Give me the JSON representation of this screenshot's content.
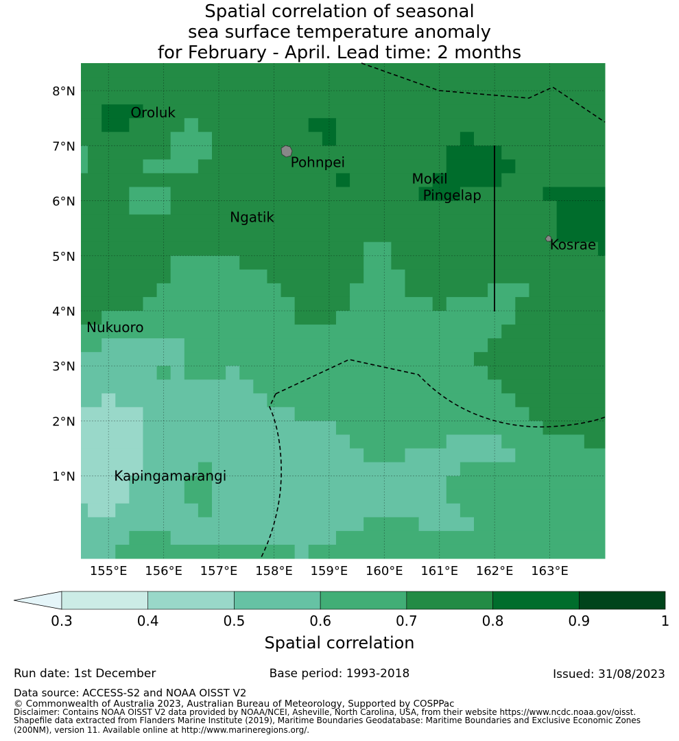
{
  "title": {
    "line1": "Spatial correlation of seasonal",
    "line2": "sea surface temperature anomaly",
    "line3": "for February - April. Lead time: 2 months"
  },
  "map": {
    "lat_labels": [
      "8°N",
      "7°N",
      "6°N",
      "5°N",
      "4°N",
      "3°N",
      "2°N",
      "1°N"
    ],
    "lat_values": [
      8,
      7,
      6,
      5,
      4,
      3,
      2,
      1
    ],
    "lon_labels": [
      "155°E",
      "156°E",
      "157°E",
      "158°E",
      "159°E",
      "160°E",
      "161°E",
      "162°E",
      "163°E"
    ],
    "lon_values": [
      155,
      156,
      157,
      158,
      159,
      160,
      161,
      162,
      163
    ],
    "extent": {
      "lon_min": 154.5,
      "lon_max": 164.0,
      "lat_min": -0.5,
      "lat_max": 8.5
    },
    "grid_resolution_deg": 0.25,
    "places": [
      {
        "name": "Oroluk",
        "lon": 155.4,
        "lat": 7.6
      },
      {
        "name": "Pohnpei",
        "lon": 158.3,
        "lat": 6.7
      },
      {
        "name": "Mokil",
        "lon": 160.5,
        "lat": 6.4
      },
      {
        "name": "Pingelap",
        "lon": 160.7,
        "lat": 6.1
      },
      {
        "name": "Ngatik",
        "lon": 157.2,
        "lat": 5.7
      },
      {
        "name": "Kosrae",
        "lon": 163.0,
        "lat": 5.2
      },
      {
        "name": "Nukuoro",
        "lon": 154.6,
        "lat": 3.7
      },
      {
        "name": "Kapingamarangi",
        "lon": 155.1,
        "lat": 1.0
      }
    ],
    "grid_rows_runs": [
      [
        [
          0.7,
          39
        ]
      ],
      [
        [
          0.7,
          39
        ]
      ],
      [
        [
          0.7,
          39
        ]
      ],
      [
        [
          0.7,
          2
        ],
        [
          0.8,
          3
        ],
        [
          0.7,
          34
        ]
      ],
      [
        [
          0.7,
          2
        ],
        [
          0.8,
          2
        ],
        [
          0.7,
          4
        ],
        [
          0.6,
          1
        ],
        [
          0.7,
          8
        ],
        [
          0.8,
          2
        ],
        [
          0.7,
          20
        ]
      ],
      [
        [
          0.7,
          7
        ],
        [
          0.6,
          3
        ],
        [
          0.7,
          8
        ],
        [
          0.8,
          1
        ],
        [
          0.7,
          9
        ],
        [
          0.8,
          1
        ],
        [
          0.7,
          10
        ]
      ],
      [
        [
          0.6,
          1
        ],
        [
          0.7,
          6
        ],
        [
          0.6,
          3
        ],
        [
          0.7,
          17
        ],
        [
          0.8,
          4
        ],
        [
          0.7,
          8
        ]
      ],
      [
        [
          0.6,
          1
        ],
        [
          0.7,
          4
        ],
        [
          0.6,
          4
        ],
        [
          0.7,
          18
        ],
        [
          0.8,
          5
        ],
        [
          0.7,
          7
        ]
      ],
      [
        [
          0.7,
          19
        ],
        [
          0.8,
          1
        ],
        [
          0.7,
          6
        ],
        [
          0.8,
          5
        ],
        [
          0.7,
          8
        ]
      ],
      [
        [
          0.7,
          4
        ],
        [
          0.6,
          3
        ],
        [
          0.7,
          18
        ],
        [
          0.8,
          3
        ],
        [
          0.7,
          6
        ],
        [
          0.8,
          5
        ]
      ],
      [
        [
          0.7,
          4
        ],
        [
          0.6,
          3
        ],
        [
          0.7,
          28
        ],
        [
          0.8,
          4
        ]
      ],
      [
        [
          0.7,
          35
        ],
        [
          0.8,
          4
        ]
      ],
      [
        [
          0.7,
          35
        ],
        [
          0.8,
          4
        ]
      ],
      [
        [
          0.7,
          21
        ],
        [
          0.6,
          2
        ],
        [
          0.7,
          15
        ],
        [
          0.8,
          1
        ]
      ],
      [
        [
          0.7,
          7
        ],
        [
          0.6,
          5
        ],
        [
          0.7,
          9
        ],
        [
          0.6,
          2
        ],
        [
          0.7,
          16
        ]
      ],
      [
        [
          0.7,
          7
        ],
        [
          0.6,
          7
        ],
        [
          0.7,
          7
        ],
        [
          0.6,
          3
        ],
        [
          0.7,
          15
        ]
      ],
      [
        [
          0.7,
          6
        ],
        [
          0.6,
          9
        ],
        [
          0.7,
          5
        ],
        [
          0.6,
          4
        ],
        [
          0.7,
          6
        ],
        [
          0.6,
          3
        ],
        [
          0.7,
          6
        ]
      ],
      [
        [
          0.7,
          5
        ],
        [
          0.6,
          11
        ],
        [
          0.7,
          4
        ],
        [
          0.6,
          6
        ],
        [
          0.7,
          1
        ],
        [
          0.6,
          5
        ],
        [
          0.7,
          7
        ]
      ],
      [
        [
          0.7,
          2
        ],
        [
          0.6,
          14
        ],
        [
          0.7,
          3
        ],
        [
          0.6,
          13
        ],
        [
          0.7,
          7
        ]
      ],
      [
        [
          0.6,
          31
        ],
        [
          0.7,
          8
        ]
      ],
      [
        [
          0.6,
          2
        ],
        [
          0.5,
          6
        ],
        [
          0.6,
          22
        ],
        [
          0.7,
          9
        ]
      ],
      [
        [
          0.5,
          8
        ],
        [
          0.6,
          21
        ],
        [
          0.7,
          10
        ]
      ],
      [
        [
          0.5,
          6
        ],
        [
          0.6,
          1
        ],
        [
          0.5,
          1
        ],
        [
          0.6,
          3
        ],
        [
          0.5,
          1
        ],
        [
          0.6,
          18
        ],
        [
          0.7,
          9
        ]
      ],
      [
        [
          0.5,
          13
        ],
        [
          0.6,
          18
        ],
        [
          0.7,
          8
        ]
      ],
      [
        [
          0.5,
          2
        ],
        [
          0.4,
          1
        ],
        [
          0.5,
          11
        ],
        [
          0.6,
          18
        ],
        [
          0.7,
          7
        ]
      ],
      [
        [
          0.4,
          5
        ],
        [
          0.5,
          11
        ],
        [
          0.6,
          17
        ],
        [
          0.7,
          6
        ]
      ],
      [
        [
          0.4,
          5
        ],
        [
          0.5,
          14
        ],
        [
          0.6,
          15
        ],
        [
          0.7,
          5
        ]
      ],
      [
        [
          0.4,
          5
        ],
        [
          0.5,
          15
        ],
        [
          0.6,
          7
        ],
        [
          0.5,
          4
        ],
        [
          0.6,
          6
        ],
        [
          0.7,
          2
        ]
      ],
      [
        [
          0.4,
          5
        ],
        [
          0.5,
          16
        ],
        [
          0.6,
          3
        ],
        [
          0.5,
          8
        ],
        [
          0.6,
          7
        ]
      ],
      [
        [
          0.4,
          5
        ],
        [
          0.5,
          4
        ],
        [
          0.6,
          1
        ],
        [
          0.5,
          18
        ],
        [
          0.6,
          11
        ]
      ],
      [
        [
          0.4,
          4
        ],
        [
          0.5,
          4
        ],
        [
          0.6,
          2
        ],
        [
          0.5,
          17
        ],
        [
          0.6,
          12
        ]
      ],
      [
        [
          0.4,
          4
        ],
        [
          0.5,
          4
        ],
        [
          0.6,
          2
        ],
        [
          0.5,
          17
        ],
        [
          0.6,
          12
        ]
      ],
      [
        [
          0.5,
          1
        ],
        [
          0.4,
          2
        ],
        [
          0.5,
          6
        ],
        [
          0.6,
          1
        ],
        [
          0.5,
          18
        ],
        [
          0.6,
          11
        ]
      ],
      [
        [
          0.5,
          21
        ],
        [
          0.6,
          4
        ],
        [
          0.5,
          4
        ],
        [
          0.6,
          10
        ]
      ],
      [
        [
          0.5,
          4
        ],
        [
          0.6,
          3
        ],
        [
          0.5,
          12
        ],
        [
          0.6,
          20
        ]
      ],
      [
        [
          0.5,
          3
        ],
        [
          0.6,
          13
        ],
        [
          0.5,
          1
        ],
        [
          0.6,
          22
        ]
      ]
    ]
  },
  "colorbar": {
    "label": "Spatial correlation",
    "ticks": [
      "0.3",
      "0.4",
      "0.5",
      "0.6",
      "0.7",
      "0.8",
      "0.9",
      "1"
    ],
    "bins": [
      0.3,
      0.4,
      0.5,
      0.6,
      0.7,
      0.8,
      0.9
    ],
    "colors": {
      "under": "#e5f5f9",
      "0.3": "#ccece6",
      "0.4": "#99d8c9",
      "0.5": "#66c2a4",
      "0.6": "#41ae76",
      "0.7": "#238b45",
      "0.8": "#006d2c",
      "0.9": "#00441b"
    }
  },
  "footer": {
    "run_date": "Run date: 1st December",
    "base_period": "Base period: 1993-2018",
    "issued": "Issued: 31/08/2023",
    "data_source": "Data source: ACCESS-S2 and NOAA OISST V2",
    "copyright": "© Commonwealth of Australia 2023, Australian Bureau of Meteorology, Supported by COSPPac",
    "disclaimer1": "Disclaimer: Contains NOAA OISST V2 data provided by NOAA/NCEI, Asheville, North Carolina, USA, from their website https://www.ncdc.noaa.gov/oisst.",
    "disclaimer2": "Shapefile data extracted from Flanders Marine Institute (2019), Maritime Boundaries Geodatabase: Maritime Boundaries and Exclusive Economic Zones",
    "disclaimer3": "(200NM), version 11. Available online at http://www.marineregions.org/."
  }
}
